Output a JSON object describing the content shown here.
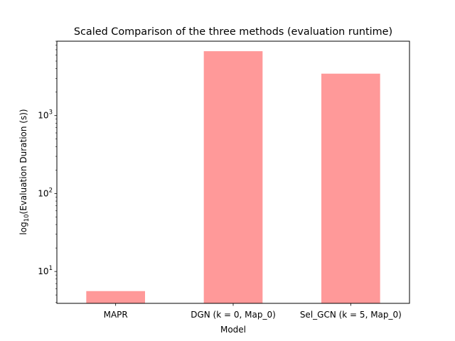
{
  "chart_data": {
    "type": "bar",
    "title": "Scaled Comparison of the three methods (evaluation runtime)",
    "xlabel": "Model",
    "ylabel": {
      "prefix": "log",
      "subscript": "10",
      "suffix": "(Evaluation Duration (s))"
    },
    "categories": [
      "MAPR",
      "DGN (k = 0, Map_0)",
      "Sel_GCN (k = 5, Map_0)"
    ],
    "values": [
      5.6,
      6700,
      3450
    ],
    "yscale": "log",
    "ylim": [
      3.9,
      9000
    ],
    "yticks": [
      {
        "base": "10",
        "exp": "1"
      },
      {
        "base": "10",
        "exp": "2"
      },
      {
        "base": "10",
        "exp": "3"
      }
    ],
    "bar_color": "#ff9999",
    "grid": false,
    "legend": "none"
  }
}
